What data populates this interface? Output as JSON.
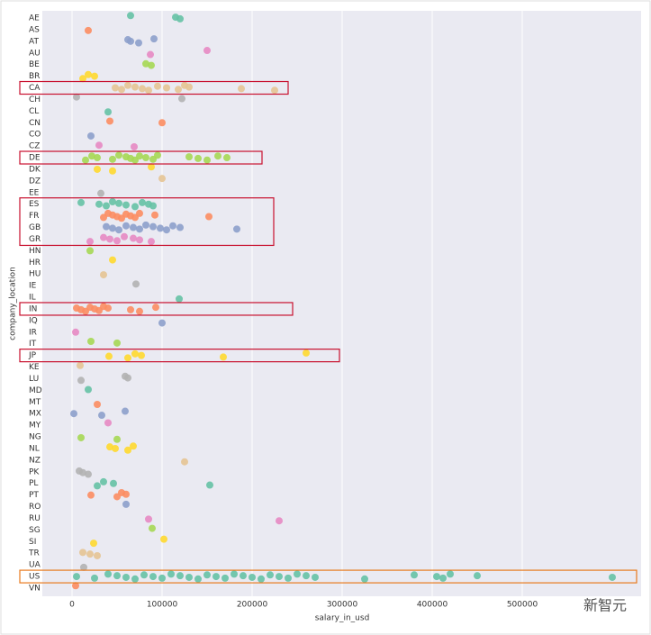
{
  "chart_data": {
    "type": "strip",
    "x_label": "salary_in_usd",
    "y_label": "company_location",
    "watermark": "新智元",
    "categories": [
      "AE",
      "AS",
      "AT",
      "AU",
      "BE",
      "BR",
      "CA",
      "CH",
      "CL",
      "CN",
      "CO",
      "CZ",
      "DE",
      "DK",
      "DZ",
      "EE",
      "ES",
      "FR",
      "GB",
      "GR",
      "HN",
      "HR",
      "HU",
      "IE",
      "IL",
      "IN",
      "IQ",
      "IR",
      "IT",
      "JP",
      "KE",
      "LU",
      "MD",
      "MT",
      "MX",
      "MY",
      "NG",
      "NL",
      "NZ",
      "PK",
      "PL",
      "PT",
      "RO",
      "RU",
      "SG",
      "SI",
      "TR",
      "UA",
      "US",
      "VN"
    ],
    "values": [
      [
        65000,
        115000,
        120000
      ],
      [
        18000
      ],
      [
        62000,
        65000,
        74000,
        91000
      ],
      [
        87000,
        150000
      ],
      [
        82000,
        88000
      ],
      [
        12000,
        18000,
        25000
      ],
      [
        48000,
        55000,
        62000,
        70000,
        78000,
        85000,
        95000,
        105000,
        118000,
        125000,
        130000,
        188000,
        225000
      ],
      [
        5000,
        122000
      ],
      [
        40000
      ],
      [
        42000,
        100000
      ],
      [
        21000
      ],
      [
        30000,
        69000
      ],
      [
        15000,
        22000,
        28000,
        45000,
        52000,
        60000,
        65000,
        70000,
        75000,
        82000,
        90000,
        95000,
        130000,
        140000,
        150000,
        162000,
        172000
      ],
      [
        28000,
        45000,
        88000
      ],
      [
        100000
      ],
      [
        32000
      ],
      [
        10000,
        30000,
        38000,
        45000,
        52000,
        60000,
        70000,
        78000,
        85000,
        90000
      ],
      [
        35000,
        40000,
        45000,
        50000,
        55000,
        60000,
        65000,
        70000,
        75000,
        92000,
        152000
      ],
      [
        38000,
        45000,
        52000,
        60000,
        68000,
        75000,
        82000,
        90000,
        98000,
        105000,
        112000,
        120000,
        183000
      ],
      [
        20000,
        35000,
        42000,
        50000,
        58000,
        68000,
        75000,
        88000
      ],
      [
        20000
      ],
      [
        45000
      ],
      [
        35000
      ],
      [
        71000
      ],
      [
        119000
      ],
      [
        5000,
        10000,
        15000,
        20000,
        25000,
        30000,
        35000,
        40000,
        65000,
        75000,
        93000
      ],
      [
        100000
      ],
      [
        4000
      ],
      [
        21000,
        50000
      ],
      [
        41000,
        62000,
        70000,
        77000,
        168000,
        260000
      ],
      [
        9000
      ],
      [
        10000,
        59000,
        62000
      ],
      [
        18000
      ],
      [
        28000
      ],
      [
        2000,
        33000,
        59000
      ],
      [
        40000
      ],
      [
        10000,
        50000
      ],
      [
        42000,
        48000,
        62000,
        68000
      ],
      [
        125000
      ],
      [
        8000,
        12000,
        18000
      ],
      [
        28000,
        35000,
        46000,
        153000
      ],
      [
        21000,
        50000,
        55000,
        60000
      ],
      [
        60000
      ],
      [
        85000,
        230000
      ],
      [
        89000
      ],
      [
        24000,
        102000
      ],
      [
        12000,
        20000,
        28000
      ],
      [
        13000
      ],
      [
        5000,
        25000,
        40000,
        50000,
        60000,
        70000,
        80000,
        90000,
        100000,
        110000,
        120000,
        130000,
        140000,
        150000,
        160000,
        170000,
        180000,
        190000,
        200000,
        210000,
        220000,
        230000,
        240000,
        250000,
        260000,
        270000,
        325000,
        380000,
        405000,
        412000,
        420000,
        450000,
        600000
      ],
      [
        4000
      ]
    ],
    "palette": [
      "#66c2a5",
      "#fc8d62",
      "#8da0cb",
      "#e78ac3",
      "#a6d854",
      "#ffd92f",
      "#e5c494",
      "#b3b3b3"
    ],
    "xlim": [
      -33000,
      632000
    ],
    "xticks": [
      0,
      100000,
      200000,
      300000,
      400000,
      500000
    ],
    "grid": true
  }
}
